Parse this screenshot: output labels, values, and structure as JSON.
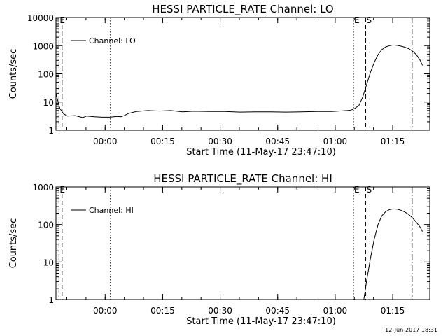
{
  "stamp": "12-Jun-2017 18:31",
  "chart_data": [
    {
      "type": "line",
      "title": "HESSI PARTICLE_RATE Channel: LO",
      "xlabel": "Start Time (11-May-17 23:47:10)",
      "ylabel": "Counts/sec",
      "yscale": "log",
      "ylim": [
        1,
        10000
      ],
      "ytick_labels": [
        "1",
        "10",
        "100",
        "1000",
        "10000"
      ],
      "xlim_minutes_after_start": [
        0,
        97.5
      ],
      "xtick_labels": [
        "00:00",
        "00:15",
        "00:30",
        "00:45",
        "01:00",
        "01:15"
      ],
      "legend": "Channel: LO",
      "legend_position": "upper-left",
      "markers": [
        {
          "label": "E",
          "style": "dashdot"
        },
        {
          "label": "",
          "style": "dashed"
        },
        {
          "label": "",
          "style": "dotted"
        },
        {
          "label": "E",
          "style": "dotted"
        },
        {
          "label": "S",
          "style": "dashed"
        },
        {
          "label": "",
          "style": "dashdot"
        }
      ],
      "series": [
        {
          "name": "Channel: LO",
          "x": [
            0,
            1,
            2,
            3,
            5,
            7,
            8,
            10,
            12,
            14,
            16,
            17,
            18,
            19,
            21,
            24,
            27,
            30,
            33,
            36,
            40,
            44,
            48,
            52,
            56,
            60,
            64,
            68,
            72,
            76,
            77,
            78,
            79,
            80,
            81,
            82,
            83,
            84,
            85,
            86,
            87,
            88,
            89,
            90,
            91,
            92,
            93,
            94,
            95,
            95.6
          ],
          "y": [
            20,
            6,
            3.8,
            3.2,
            3.3,
            2.8,
            3.2,
            3,
            2.9,
            2.9,
            3.1,
            3,
            3.4,
            4,
            4.6,
            5,
            4.8,
            5,
            4.5,
            4.7,
            4.6,
            4.6,
            4.4,
            4.5,
            4.5,
            4.4,
            4.5,
            4.6,
            4.6,
            5,
            5.2,
            6,
            7.5,
            15,
            40,
            110,
            250,
            480,
            720,
            900,
            1000,
            1050,
            1020,
            960,
            880,
            780,
            640,
            480,
            300,
            200
          ]
        }
      ]
    },
    {
      "type": "line",
      "title": "HESSI PARTICLE_RATE Channel: HI",
      "xlabel": "Start Time (11-May-17 23:47:10)",
      "ylabel": "Counts/sec",
      "yscale": "log",
      "ylim": [
        1,
        1000
      ],
      "ytick_labels": [
        "1",
        "10",
        "100",
        "1000"
      ],
      "xlim_minutes_after_start": [
        0,
        97.5
      ],
      "xtick_labels": [
        "00:00",
        "00:15",
        "00:30",
        "00:45",
        "01:00",
        "01:15"
      ],
      "legend": "Channel: HI",
      "legend_position": "upper-left",
      "markers": [
        {
          "label": "E",
          "style": "dashdot"
        },
        {
          "label": "",
          "style": "dashed"
        },
        {
          "label": "",
          "style": "dotted"
        },
        {
          "label": "E",
          "style": "dotted"
        },
        {
          "label": "S",
          "style": "dashed"
        },
        {
          "label": "",
          "style": "dashdot"
        }
      ],
      "series": [
        {
          "name": "Channel: HI",
          "x": [
            80.3,
            81,
            82,
            83,
            84,
            85,
            86,
            87,
            88,
            89,
            90,
            91,
            92,
            93,
            94,
            95,
            95.6
          ],
          "y": [
            1,
            3,
            12,
            40,
            100,
            170,
            220,
            250,
            260,
            255,
            240,
            215,
            185,
            150,
            115,
            85,
            65
          ]
        }
      ]
    }
  ]
}
